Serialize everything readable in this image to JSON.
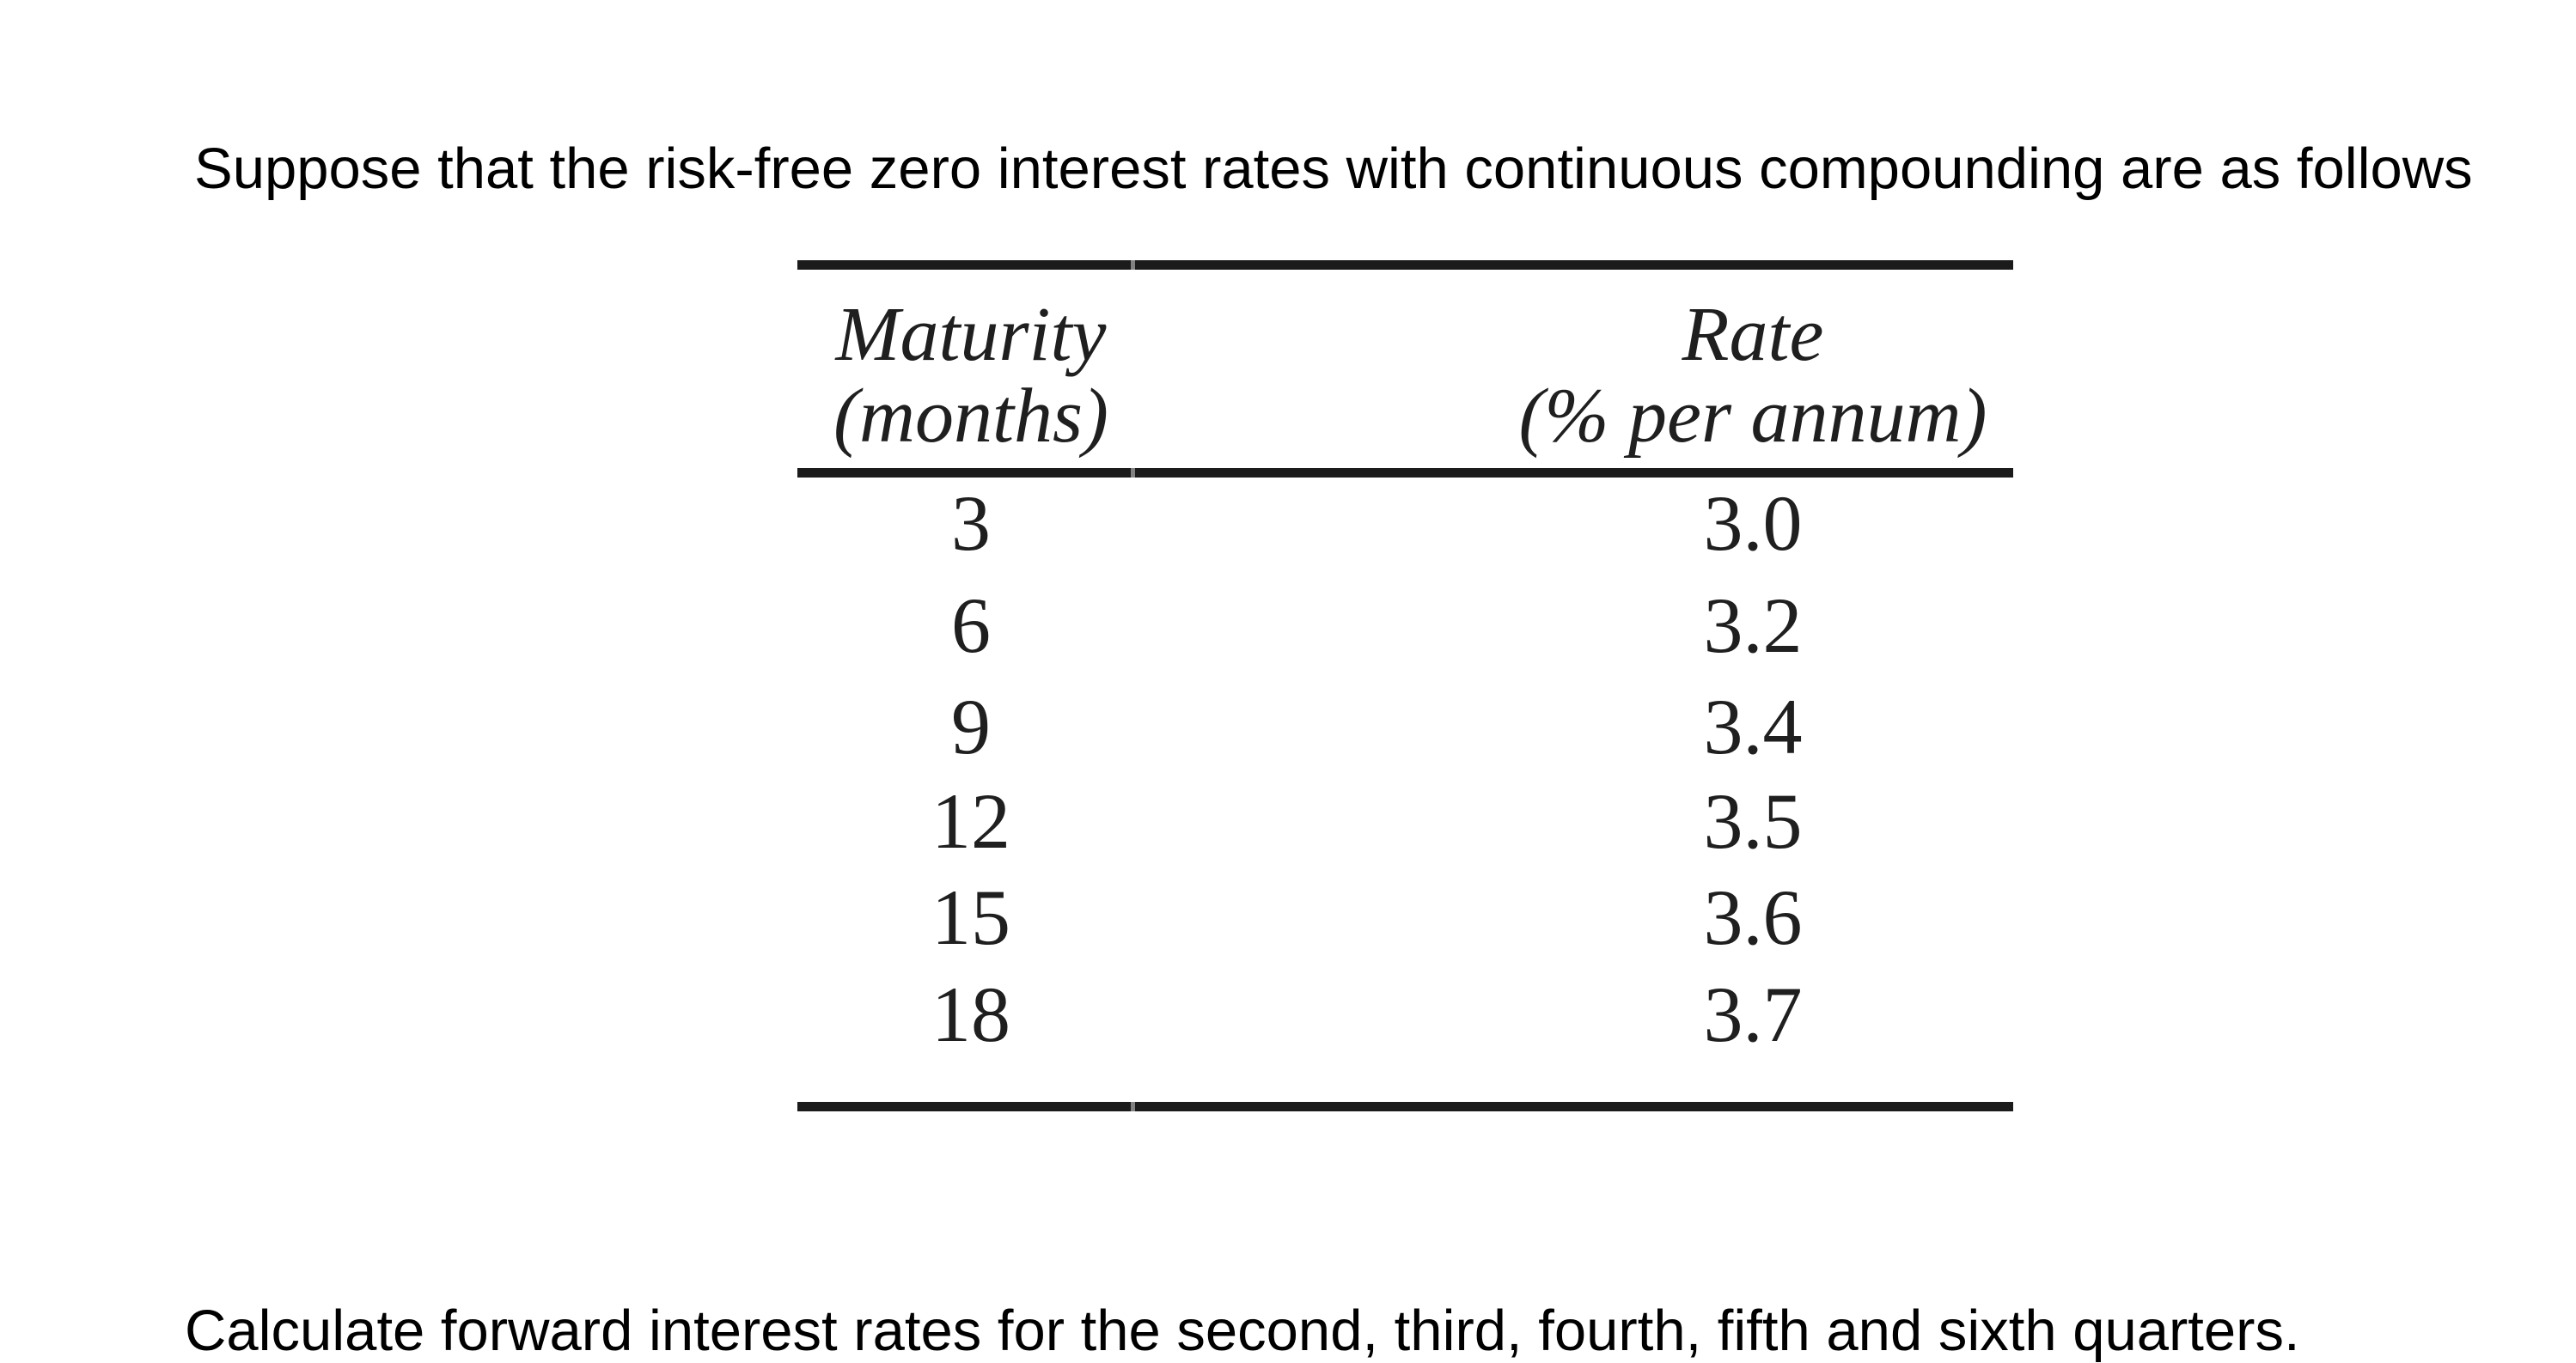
{
  "document": {
    "intro_text": "Suppose that the risk-free zero interest rates with continuous compounding are as follows",
    "question_text": "Calculate forward interest rates for the second, third, fourth, fifth and sixth quarters."
  },
  "table": {
    "maturity_header": {
      "line1": "Maturity",
      "line2": "(months)"
    },
    "rate_header": {
      "line1": "Rate",
      "line2": "(% per annum)"
    },
    "rows": [
      {
        "maturity": "3",
        "rate": "3.0"
      },
      {
        "maturity": "6",
        "rate": "3.2"
      },
      {
        "maturity": "9",
        "rate": "3.4"
      },
      {
        "maturity": "12",
        "rate": "3.5"
      },
      {
        "maturity": "15",
        "rate": "3.6"
      },
      {
        "maturity": "18",
        "rate": "3.7"
      }
    ]
  },
  "colors": {
    "background": "#ffffff",
    "body_text": "#000000",
    "table_text": "#1f1f1f",
    "rule": "#1b1b1b"
  }
}
